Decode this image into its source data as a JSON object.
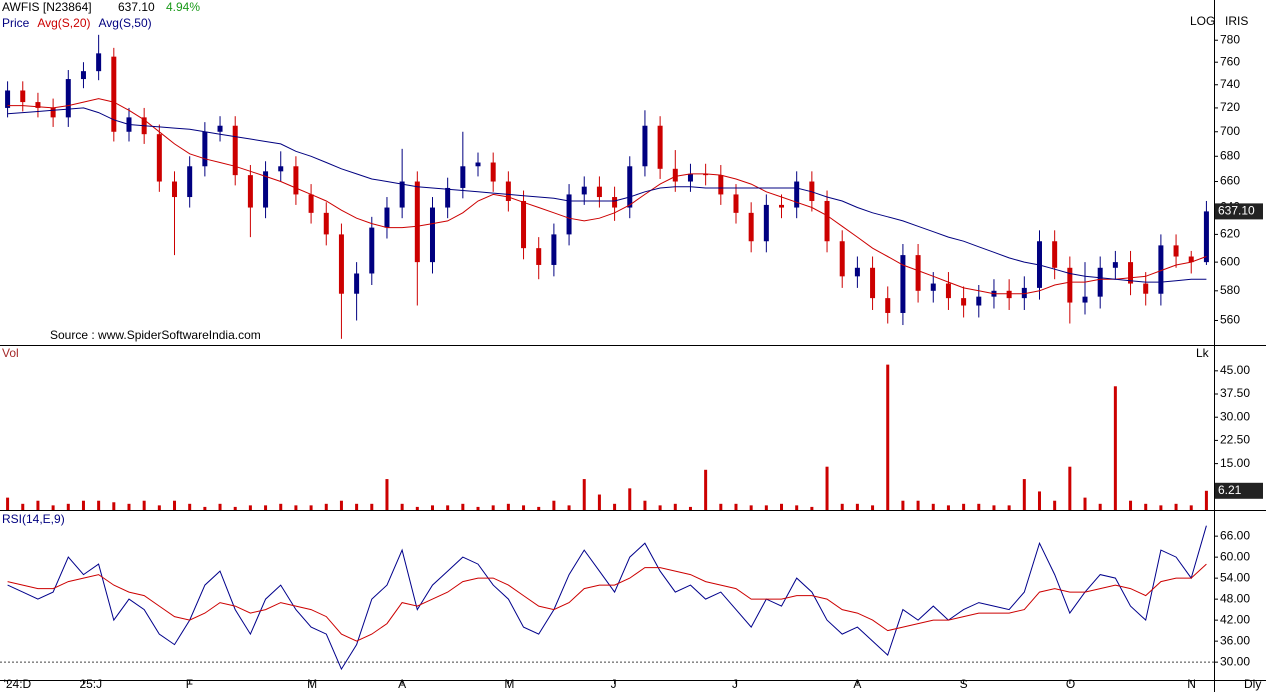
{
  "header": {
    "symbol": "AWFIS [N23864]",
    "price": "637.10",
    "change": "4.94%",
    "scale": "LOG",
    "tool": "IRIS",
    "source": "Source : www.SpiderSoftwareIndia.com",
    "timeframe": "Dly"
  },
  "chart_data": [
    {
      "type": "candlestick",
      "log_scale": true,
      "ylim": [
        544,
        818
      ],
      "yticks": [
        560,
        580,
        600,
        620,
        640,
        660,
        680,
        700,
        720,
        740,
        760,
        780
      ],
      "down_color": "#cc0000",
      "series": [
        {
          "name": "Price",
          "color": "#000080",
          "open": [
            720,
            735,
            725,
            720,
            712,
            745,
            752,
            765,
            700,
            712,
            698,
            660,
            648,
            672,
            700,
            705,
            665,
            640,
            668,
            672,
            650,
            636,
            620,
            578,
            592,
            625,
            640,
            660,
            600,
            640,
            655,
            672,
            675,
            660,
            645,
            610,
            598,
            620,
            650,
            656,
            648,
            640,
            672,
            705,
            670,
            660,
            666,
            665,
            650,
            636,
            615,
            642,
            640,
            660,
            645,
            615,
            590,
            596,
            575,
            565,
            605,
            580,
            585,
            575,
            570,
            576,
            580,
            575,
            582,
            615,
            596,
            572,
            576,
            596,
            600,
            585,
            578,
            612,
            604,
            600
          ],
          "high": [
            743,
            743,
            733,
            728,
            753,
            760,
            785,
            773,
            720,
            720,
            706,
            668,
            680,
            708,
            713,
            713,
            673,
            676,
            684,
            680,
            658,
            644,
            628,
            600,
            633,
            648,
            686,
            668,
            648,
            663,
            700,
            683,
            683,
            668,
            653,
            618,
            628,
            658,
            664,
            664,
            656,
            680,
            718,
            713,
            685,
            674,
            674,
            673,
            658,
            644,
            650,
            650,
            668,
            668,
            653,
            623,
            604,
            604,
            583,
            613,
            613,
            593,
            593,
            583,
            584,
            588,
            588,
            590,
            623,
            623,
            604,
            600,
            604,
            608,
            608,
            593,
            620,
            620,
            608,
            645
          ],
          "low": [
            712,
            717,
            712,
            704,
            704,
            737,
            744,
            692,
            692,
            690,
            652,
            605,
            640,
            664,
            692,
            657,
            618,
            632,
            660,
            642,
            628,
            612,
            548,
            560,
            584,
            617,
            632,
            570,
            592,
            632,
            647,
            664,
            652,
            637,
            602,
            588,
            590,
            612,
            642,
            640,
            630,
            632,
            664,
            662,
            652,
            652,
            657,
            642,
            628,
            607,
            607,
            632,
            632,
            637,
            607,
            582,
            582,
            567,
            558,
            557,
            572,
            572,
            567,
            562,
            562,
            568,
            567,
            567,
            574,
            588,
            558,
            564,
            568,
            588,
            577,
            570,
            570,
            596,
            592,
            598
          ],
          "close": [
            735,
            725,
            720,
            712,
            745,
            752,
            768,
            700,
            712,
            698,
            660,
            648,
            672,
            700,
            705,
            665,
            640,
            668,
            672,
            650,
            636,
            620,
            578,
            592,
            625,
            640,
            660,
            600,
            640,
            655,
            672,
            675,
            660,
            645,
            610,
            598,
            620,
            650,
            656,
            648,
            640,
            672,
            705,
            670,
            660,
            666,
            665,
            650,
            636,
            615,
            642,
            640,
            660,
            645,
            615,
            590,
            596,
            575,
            565,
            605,
            580,
            585,
            575,
            570,
            576,
            580,
            575,
            582,
            615,
            596,
            572,
            576,
            596,
            600,
            585,
            578,
            612,
            604,
            600,
            637.1
          ]
        },
        {
          "name": "Avg(S,20)",
          "color": "#cc0000",
          "values": [
            722,
            722,
            721,
            720,
            722,
            725,
            728,
            725,
            718,
            710,
            700,
            690,
            682,
            678,
            675,
            672,
            668,
            664,
            660,
            655,
            650,
            645,
            638,
            632,
            628,
            625,
            625,
            626,
            628,
            630,
            636,
            645,
            650,
            648,
            644,
            640,
            636,
            632,
            630,
            632,
            636,
            642,
            650,
            658,
            664,
            666,
            666,
            665,
            662,
            658,
            652,
            648,
            644,
            640,
            634,
            626,
            618,
            610,
            604,
            598,
            594,
            590,
            586,
            582,
            580,
            578,
            578,
            578,
            580,
            584,
            586,
            586,
            588,
            588,
            589,
            590,
            594,
            598,
            600,
            604
          ]
        },
        {
          "name": "Avg(S,50)",
          "color": "#000080",
          "values": [
            715,
            716,
            717,
            718,
            719,
            720,
            716,
            710,
            706,
            705,
            704,
            703,
            702,
            700,
            698,
            696,
            694,
            692,
            690,
            684,
            680,
            675,
            670,
            666,
            662,
            660,
            658,
            656,
            655,
            654,
            653,
            652,
            651,
            650,
            649,
            648,
            647,
            645,
            645,
            645,
            645,
            648,
            652,
            655,
            656,
            656,
            655,
            655,
            655,
            655,
            655,
            655,
            655,
            652,
            648,
            645,
            640,
            636,
            633,
            630,
            626,
            622,
            618,
            615,
            611,
            607,
            603,
            600,
            598,
            595,
            592,
            590,
            589,
            588,
            587,
            586,
            586,
            587,
            588,
            588
          ]
        }
      ]
    },
    {
      "type": "bar",
      "title": "Vol",
      "unit": "Lk",
      "color": "#cc0000",
      "ylim": [
        0,
        52.7
      ],
      "yticks": [
        {
          "value": 15,
          "label": "15.00"
        },
        {
          "value": 22.5,
          "label": "22.50"
        },
        {
          "value": 30,
          "label": "30.00"
        },
        {
          "value": 37.5,
          "label": "37.50"
        },
        {
          "value": 45,
          "label": "45.00"
        }
      ],
      "values": [
        4,
        2,
        3,
        1.5,
        2,
        3,
        3,
        2.5,
        2,
        3,
        1.5,
        3,
        2,
        1,
        2,
        1,
        1.5,
        1.5,
        2,
        1.5,
        1.5,
        2,
        3,
        2,
        2,
        10,
        2,
        1,
        1.5,
        1.5,
        2,
        1,
        1.5,
        2,
        1.5,
        1,
        3,
        1.5,
        10,
        5,
        2,
        7,
        3,
        1.5,
        2,
        1,
        13,
        2,
        2,
        1.5,
        1.5,
        2,
        1.5,
        1,
        14,
        2,
        2,
        1.5,
        47,
        3,
        3,
        2,
        1.5,
        2,
        2,
        1.5,
        1.5,
        10,
        6,
        3,
        14,
        4,
        2,
        40,
        3,
        2,
        1.5,
        2,
        1.5,
        6.21
      ]
    },
    {
      "type": "line",
      "title": "RSI(14,E,9)",
      "ylim": [
        24.9,
        72.9
      ],
      "hline": 30,
      "yticks": [
        {
          "value": 30,
          "label": "30.00"
        },
        {
          "value": 36,
          "label": "36.00"
        },
        {
          "value": 42,
          "label": "42.00"
        },
        {
          "value": 48,
          "label": "48.00"
        },
        {
          "value": 54,
          "label": "54.00"
        },
        {
          "value": 60,
          "label": "60.00"
        },
        {
          "value": 66,
          "label": "66.00"
        }
      ],
      "categories": [
        "'24:D",
        null,
        null,
        null,
        null,
        "25:J",
        null,
        null,
        null,
        null,
        null,
        null,
        "F",
        null,
        null,
        null,
        null,
        null,
        null,
        null,
        "M",
        null,
        null,
        null,
        null,
        null,
        "A",
        null,
        null,
        null,
        null,
        null,
        null,
        "M",
        null,
        null,
        null,
        null,
        null,
        null,
        "J",
        null,
        null,
        null,
        null,
        null,
        null,
        null,
        "J",
        null,
        null,
        null,
        null,
        null,
        null,
        null,
        "A",
        null,
        null,
        null,
        null,
        null,
        null,
        "S",
        null,
        null,
        null,
        null,
        null,
        null,
        "O",
        null,
        null,
        null,
        null,
        null,
        null,
        null,
        "N",
        null
      ],
      "series": [
        {
          "color": "#00008b",
          "values": [
            52,
            50,
            48,
            50,
            60,
            55,
            58,
            42,
            48,
            45,
            38,
            35,
            42,
            52,
            56,
            45,
            38,
            48,
            52,
            45,
            40,
            38,
            28,
            35,
            48,
            52,
            62,
            45,
            52,
            56,
            60,
            58,
            52,
            48,
            40,
            38,
            45,
            55,
            62,
            56,
            50,
            60,
            64,
            56,
            50,
            52,
            48,
            50,
            45,
            40,
            48,
            46,
            54,
            50,
            42,
            38,
            40,
            36,
            32,
            45,
            42,
            46,
            42,
            45,
            47,
            46,
            45,
            50,
            64,
            55,
            44,
            50,
            55,
            54,
            46,
            42,
            62,
            60,
            54,
            69
          ]
        },
        {
          "color": "#cc0000",
          "values": [
            53,
            52,
            51,
            51,
            53,
            54,
            55,
            52,
            50,
            49,
            46,
            43,
            42,
            44,
            47,
            46,
            44,
            45,
            47,
            46,
            45,
            43,
            38,
            36,
            38,
            41,
            47,
            46,
            48,
            50,
            53,
            54,
            54,
            52,
            49,
            46,
            45,
            47,
            51,
            52,
            52,
            54,
            57,
            57,
            56,
            55,
            53,
            52,
            51,
            48,
            48,
            48,
            49,
            49,
            48,
            45,
            44,
            42,
            39,
            40,
            41,
            42,
            42,
            43,
            44,
            44,
            44,
            45,
            50,
            51,
            50,
            50,
            51,
            52,
            51,
            49,
            53,
            54,
            54,
            58
          ]
        }
      ]
    }
  ]
}
